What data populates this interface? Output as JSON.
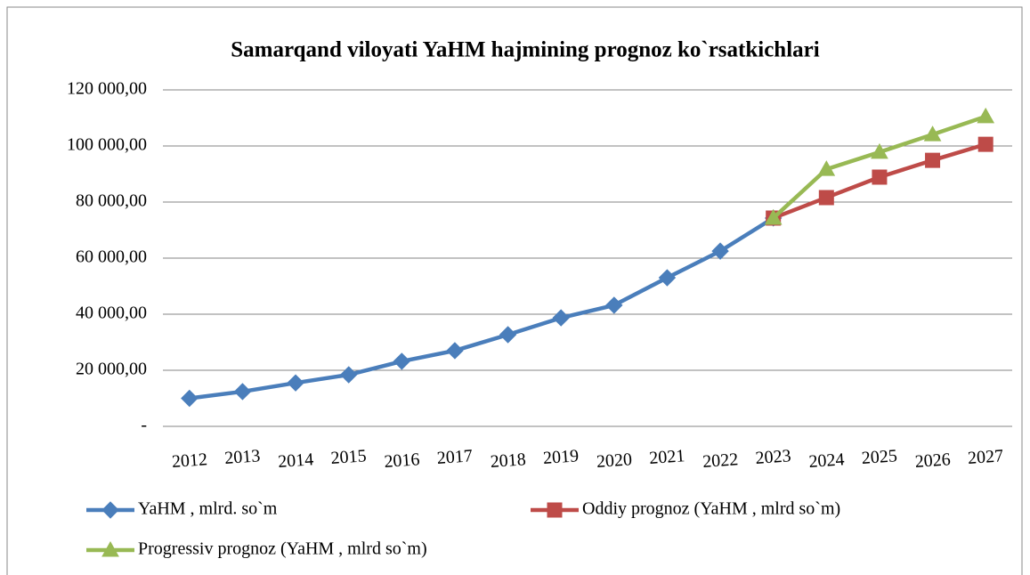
{
  "chart_data": {
    "type": "line",
    "title": "Samarqand viloyati YaHM hajmining prognoz ko`rsatkichlari",
    "categories": [
      "2012",
      "2013",
      "2014",
      "2015",
      "2016",
      "2017",
      "2018",
      "2019",
      "2020",
      "2021",
      "2022",
      "2023",
      "2024",
      "2025",
      "2026",
      "2027"
    ],
    "series": [
      {
        "name": "YaHM , mlrd. so`m",
        "color": "#4a7ebb",
        "marker": "diamond",
        "values": [
          10000,
          12400,
          15500,
          18400,
          23200,
          27000,
          32700,
          38700,
          43200,
          53000,
          62500,
          74300,
          null,
          null,
          null,
          null
        ]
      },
      {
        "name": "Oddiy prognoz (YaHM , mlrd so`m)",
        "color": "#be4b48",
        "marker": "square",
        "values": [
          null,
          null,
          null,
          null,
          null,
          null,
          null,
          null,
          null,
          null,
          null,
          74300,
          81600,
          88900,
          94900,
          100600
        ]
      },
      {
        "name": "Progressiv prognoz (YaHM , mlrd so`m)",
        "color": "#98b954",
        "marker": "triangle",
        "values": [
          null,
          null,
          null,
          null,
          null,
          null,
          null,
          null,
          null,
          null,
          null,
          74300,
          91700,
          97800,
          104100,
          110500
        ]
      }
    ],
    "ylim": [
      0,
      120000
    ],
    "yticks": [
      {
        "value": 0,
        "label": "-"
      },
      {
        "value": 20000,
        "label": "20 000,00"
      },
      {
        "value": 40000,
        "label": "40 000,00"
      },
      {
        "value": 60000,
        "label": "60 000,00"
      },
      {
        "value": 80000,
        "label": "80 000,00"
      },
      {
        "value": 100000,
        "label": "100 000,00"
      },
      {
        "value": 120000,
        "label": "120 000,00"
      }
    ],
    "grid": true,
    "legend": "bottom"
  }
}
